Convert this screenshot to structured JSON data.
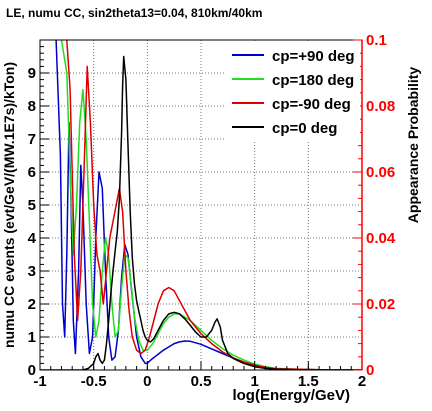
{
  "chart_data": {
    "type": "line",
    "title": "LE, numu CC, sin2theta13=0.04, 810km/40km",
    "xlabel": "log(Energy/GeV)",
    "ylabel": "numu CC events (evt/GeV/(MW.1E7s)/kTon)",
    "y2label": "Appearance Probability",
    "xlim": [
      -1,
      2
    ],
    "ylim": [
      0,
      10
    ],
    "y2lim": [
      0,
      0.1
    ],
    "xticks": [
      "-1",
      "-0.5",
      "0",
      "0.5",
      "1",
      "1.5",
      "2"
    ],
    "yticks": [
      "0",
      "1",
      "2",
      "3",
      "4",
      "5",
      "6",
      "7",
      "8",
      "9"
    ],
    "y2ticks": [
      "0",
      "0.02",
      "0.04",
      "0.06",
      "0.08",
      "0.1"
    ],
    "grid": true,
    "legend_position": "top-right",
    "series": [
      {
        "name": "cp=+90 deg",
        "color": "#0000cc",
        "axis": "right",
        "x": [
          -0.85,
          -0.81,
          -0.79,
          -0.77,
          -0.75,
          -0.73,
          -0.71,
          -0.69,
          -0.67,
          -0.64,
          -0.62,
          -0.6,
          -0.57,
          -0.54,
          -0.51,
          -0.48,
          -0.45,
          -0.42,
          -0.39,
          -0.36,
          -0.33,
          -0.3,
          -0.27,
          -0.24,
          -0.21,
          -0.18,
          -0.14,
          -0.1,
          -0.06,
          -0.02,
          0.0,
          0.03,
          0.07,
          0.11,
          0.15,
          0.2,
          0.25,
          0.3,
          0.35,
          0.4,
          0.5,
          0.6,
          0.7,
          0.8,
          0.9,
          1.0,
          1.1,
          1.2,
          1.4,
          1.6,
          1.8,
          2.0
        ],
        "values": [
          0.1,
          0.065,
          0.02,
          0.01,
          0.035,
          0.075,
          0.05,
          0.015,
          0.005,
          0.03,
          0.062,
          0.05,
          0.02,
          0.005,
          0.01,
          0.04,
          0.06,
          0.055,
          0.03,
          0.01,
          0.003,
          0.004,
          0.012,
          0.028,
          0.038,
          0.035,
          0.022,
          0.01,
          0.004,
          0.002,
          0.002,
          0.003,
          0.004,
          0.005,
          0.006,
          0.007,
          0.008,
          0.0085,
          0.0088,
          0.0087,
          0.0078,
          0.0064,
          0.005,
          0.0036,
          0.0024,
          0.0015,
          0.0008,
          0.0004,
          0.0002,
          0.0001,
          0.0,
          0.0
        ]
      },
      {
        "name": "cp=180 deg",
        "color": "#22dd22",
        "axis": "right",
        "x": [
          -0.8,
          -0.75,
          -0.72,
          -0.69,
          -0.66,
          -0.63,
          -0.6,
          -0.57,
          -0.54,
          -0.51,
          -0.48,
          -0.45,
          -0.42,
          -0.39,
          -0.36,
          -0.33,
          -0.3,
          -0.27,
          -0.24,
          -0.21,
          -0.18,
          -0.15,
          -0.12,
          -0.08,
          -0.04,
          0.0,
          0.05,
          0.1,
          0.15,
          0.2,
          0.25,
          0.3,
          0.35,
          0.4,
          0.5,
          0.6,
          0.7,
          0.8,
          0.9,
          1.0,
          1.1,
          1.2,
          1.4,
          1.6,
          1.8,
          2.0
        ],
        "values": [
          0.1,
          0.09,
          0.06,
          0.035,
          0.05,
          0.075,
          0.085,
          0.07,
          0.045,
          0.02,
          0.01,
          0.015,
          0.03,
          0.04,
          0.035,
          0.02,
          0.01,
          0.012,
          0.025,
          0.035,
          0.034,
          0.026,
          0.016,
          0.009,
          0.006,
          0.006,
          0.008,
          0.011,
          0.014,
          0.016,
          0.017,
          0.017,
          0.016,
          0.015,
          0.012,
          0.009,
          0.0065,
          0.0045,
          0.003,
          0.0018,
          0.001,
          0.0005,
          0.0002,
          0.0001,
          0.0,
          0.0
        ]
      },
      {
        "name": "cp=-90 deg",
        "color": "#dd0000",
        "axis": "right",
        "x": [
          -0.75,
          -0.72,
          -0.7,
          -0.68,
          -0.65,
          -0.62,
          -0.59,
          -0.56,
          -0.53,
          -0.5,
          -0.47,
          -0.44,
          -0.41,
          -0.38,
          -0.35,
          -0.32,
          -0.29,
          -0.26,
          -0.23,
          -0.2,
          -0.17,
          -0.14,
          -0.1,
          -0.06,
          -0.02,
          0.02,
          0.06,
          0.1,
          0.15,
          0.2,
          0.25,
          0.3,
          0.35,
          0.4,
          0.5,
          0.6,
          0.7,
          0.8,
          0.9,
          1.0,
          1.1,
          1.2,
          1.4,
          1.6,
          1.8,
          2.0
        ],
        "values": [
          0.1,
          0.085,
          0.06,
          0.035,
          0.015,
          0.03,
          0.06,
          0.092,
          0.075,
          0.05,
          0.035,
          0.03,
          0.02,
          0.03,
          0.04,
          0.045,
          0.05,
          0.055,
          0.048,
          0.03,
          0.018,
          0.01,
          0.006,
          0.005,
          0.006,
          0.01,
          0.015,
          0.02,
          0.024,
          0.025,
          0.024,
          0.021,
          0.018,
          0.015,
          0.011,
          0.008,
          0.0055,
          0.0037,
          0.0024,
          0.0015,
          0.0008,
          0.0004,
          0.0002,
          0.0001,
          0.0,
          0.0
        ]
      },
      {
        "name": "cp=0 deg",
        "color": "#000000",
        "axis": "left",
        "x": [
          -1.0,
          -0.8,
          -0.7,
          -0.6,
          -0.55,
          -0.5,
          -0.48,
          -0.46,
          -0.44,
          -0.42,
          -0.4,
          -0.38,
          -0.36,
          -0.34,
          -0.32,
          -0.3,
          -0.28,
          -0.26,
          -0.24,
          -0.23,
          -0.22,
          -0.2,
          -0.18,
          -0.16,
          -0.14,
          -0.12,
          -0.1,
          -0.08,
          -0.06,
          -0.04,
          -0.02,
          0.0,
          0.03,
          0.06,
          0.1,
          0.15,
          0.2,
          0.25,
          0.3,
          0.35,
          0.4,
          0.45,
          0.5,
          0.55,
          0.6,
          0.63,
          0.65,
          0.68,
          0.7,
          0.75,
          0.8,
          0.9,
          1.0,
          1.1,
          1.2,
          1.4,
          1.6,
          2.0
        ],
        "values": [
          0.0,
          0.0,
          0.0,
          0.0,
          0.05,
          0.2,
          0.4,
          0.5,
          0.3,
          0.2,
          0.3,
          0.8,
          1.5,
          2.3,
          3.0,
          3.6,
          4.2,
          5.2,
          7.2,
          8.6,
          9.5,
          8.8,
          6.8,
          4.8,
          3.4,
          2.6,
          2.1,
          1.8,
          1.5,
          1.2,
          1.0,
          0.9,
          0.85,
          0.95,
          1.2,
          1.5,
          1.7,
          1.75,
          1.7,
          1.55,
          1.35,
          1.15,
          1.0,
          1.0,
          1.2,
          1.45,
          1.55,
          1.3,
          0.9,
          0.5,
          0.35,
          0.2,
          0.1,
          0.05,
          0.02,
          0.0,
          0.0,
          0.0
        ]
      }
    ]
  }
}
